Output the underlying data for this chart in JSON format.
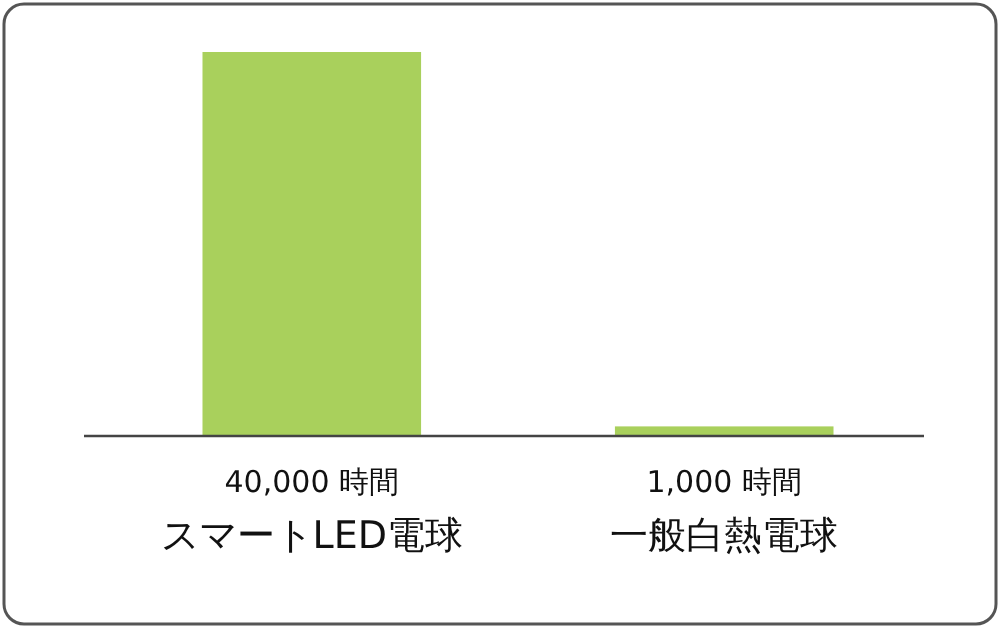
{
  "chart_data": {
    "type": "bar",
    "categories": [
      "スマートLED電球",
      "一般白熱電球"
    ],
    "values": [
      40000,
      1000
    ],
    "value_labels": [
      "40,000 時間",
      "1,000 時間"
    ],
    "color": "#a9d05c"
  }
}
